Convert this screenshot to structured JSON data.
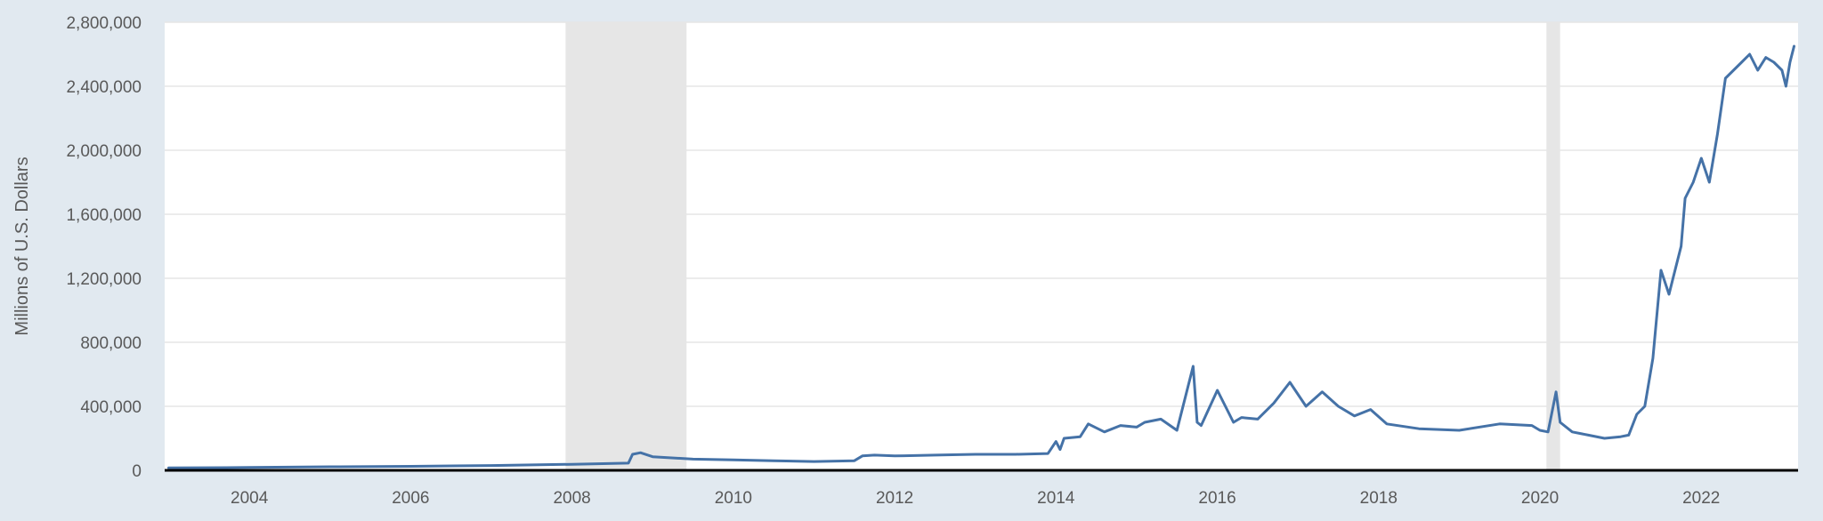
{
  "chart_data": {
    "type": "line",
    "title": "",
    "xlabel": "",
    "ylabel": "Millions of U.S. Dollars",
    "xlim": [
      2002.95,
      2023.2
    ],
    "ylim": [
      0,
      2800000
    ],
    "grid": true,
    "legend": "none",
    "colors": {
      "background": "#e1e9f0",
      "plot": "#ffffff",
      "grid": "#e6e6e6",
      "line": "#4572a7",
      "recession": "#e6e6e6",
      "axis": "#000000",
      "text": "#595959"
    },
    "y_ticks": [
      0,
      400000,
      800000,
      1200000,
      1600000,
      2000000,
      2400000,
      2800000
    ],
    "y_tick_labels": [
      "0",
      "400,000",
      "800,000",
      "1,200,000",
      "1,600,000",
      "2,000,000",
      "2,400,000",
      "2,800,000"
    ],
    "x_ticks": [
      2004,
      2006,
      2008,
      2010,
      2012,
      2014,
      2016,
      2018,
      2020,
      2022
    ],
    "x_tick_labels": [
      "2004",
      "2006",
      "2008",
      "2010",
      "2012",
      "2014",
      "2016",
      "2018",
      "2020",
      "2022"
    ],
    "recessions": [
      [
        2007.92,
        2009.42
      ],
      [
        2020.08,
        2020.25
      ]
    ],
    "series": [
      {
        "x": [
          2003.0,
          2004.0,
          2005.0,
          2006.0,
          2007.0,
          2008.0,
          2008.7,
          2008.75,
          2008.85,
          2009.0,
          2009.5,
          2010.0,
          2010.5,
          2011.0,
          2011.5,
          2011.6,
          2011.75,
          2012.0,
          2012.5,
          2013.0,
          2013.5,
          2013.9,
          2014.0,
          2014.05,
          2014.1,
          2014.3,
          2014.4,
          2014.6,
          2014.8,
          2015.0,
          2015.1,
          2015.3,
          2015.5,
          2015.7,
          2015.75,
          2015.8,
          2016.0,
          2016.2,
          2016.3,
          2016.5,
          2016.7,
          2016.9,
          2017.1,
          2017.3,
          2017.5,
          2017.7,
          2017.9,
          2018.1,
          2018.5,
          2019.0,
          2019.5,
          2019.9,
          2020.0,
          2020.1,
          2020.2,
          2020.25,
          2020.4,
          2020.6,
          2020.8,
          2021.0,
          2021.1,
          2021.2,
          2021.3,
          2021.4,
          2021.5,
          2021.6,
          2021.65,
          2021.75,
          2021.8,
          2021.9,
          2022.0,
          2022.1,
          2022.2,
          2022.3,
          2022.4,
          2022.5,
          2022.6,
          2022.7,
          2022.8,
          2022.9,
          2023.0,
          2023.05,
          2023.1,
          2023.15
        ],
        "values": [
          15000,
          18000,
          22000,
          25000,
          30000,
          38000,
          45000,
          100000,
          110000,
          85000,
          70000,
          65000,
          60000,
          55000,
          60000,
          90000,
          95000,
          90000,
          95000,
          100000,
          100000,
          105000,
          180000,
          130000,
          200000,
          210000,
          290000,
          240000,
          280000,
          270000,
          300000,
          320000,
          250000,
          650000,
          300000,
          280000,
          500000,
          300000,
          330000,
          320000,
          420000,
          550000,
          400000,
          490000,
          400000,
          340000,
          380000,
          290000,
          260000,
          250000,
          290000,
          280000,
          250000,
          240000,
          490000,
          300000,
          240000,
          220000,
          200000,
          210000,
          220000,
          350000,
          400000,
          700000,
          1250000,
          1100000,
          1200000,
          1400000,
          1700000,
          1800000,
          1950000,
          1800000,
          2100000,
          2450000,
          2500000,
          2550000,
          2600000,
          2500000,
          2580000,
          2550000,
          2500000,
          2400000,
          2550000,
          2650000
        ]
      }
    ]
  }
}
